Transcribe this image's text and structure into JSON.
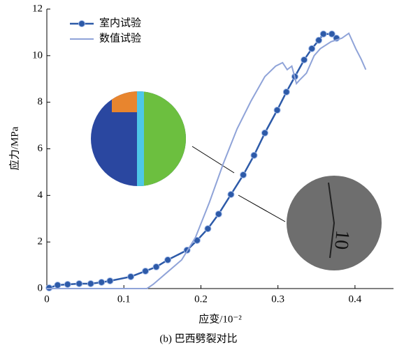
{
  "chart_data": {
    "type": "line",
    "x_label": "应变/10⁻²",
    "y_label": "应力/MPa",
    "caption": "(b) 巴西劈裂对比",
    "xlim": [
      0,
      0.45
    ],
    "xticks": [
      0,
      0.1,
      0.2,
      0.3,
      0.4
    ],
    "ylim": [
      0,
      12
    ],
    "yticks": [
      0,
      2,
      4,
      6,
      8,
      10,
      12
    ],
    "legend": "upper-left",
    "series": [
      {
        "name": "室内试验",
        "color": "#2d5aa8",
        "markers": true,
        "x": [
          0.003,
          0.014,
          0.027,
          0.042,
          0.057,
          0.071,
          0.082,
          0.109,
          0.128,
          0.142,
          0.157,
          0.182,
          0.195,
          0.209,
          0.223,
          0.239,
          0.255,
          0.269,
          0.283,
          0.299,
          0.311,
          0.322,
          0.334,
          0.344,
          0.353,
          0.359,
          0.37,
          0.376
        ],
        "values": [
          0.03,
          0.15,
          0.18,
          0.21,
          0.21,
          0.27,
          0.33,
          0.51,
          0.75,
          0.93,
          1.23,
          1.65,
          2.07,
          2.57,
          3.2,
          4.04,
          4.88,
          5.72,
          6.68,
          7.66,
          8.44,
          9.1,
          9.82,
          10.3,
          10.66,
          10.93,
          10.93,
          10.75
        ]
      },
      {
        "name": "数值试验",
        "color": "#8fa3d8",
        "markers": false,
        "x": [
          0,
          0.13,
          0.138,
          0.157,
          0.175,
          0.193,
          0.211,
          0.229,
          0.247,
          0.265,
          0.283,
          0.297,
          0.306,
          0.312,
          0.318,
          0.324,
          0.328,
          0.337,
          0.347,
          0.355,
          0.369,
          0.383,
          0.392,
          0.401,
          0.408,
          0.414
        ],
        "values": [
          0,
          0,
          0.18,
          0.72,
          1.23,
          2.2,
          3.7,
          5.36,
          6.86,
          8.05,
          9.1,
          9.55,
          9.7,
          9.4,
          9.55,
          8.8,
          8.95,
          9.25,
          10.0,
          10.3,
          10.6,
          10.75,
          10.96,
          10.3,
          9.85,
          9.4
        ]
      }
    ]
  }
}
